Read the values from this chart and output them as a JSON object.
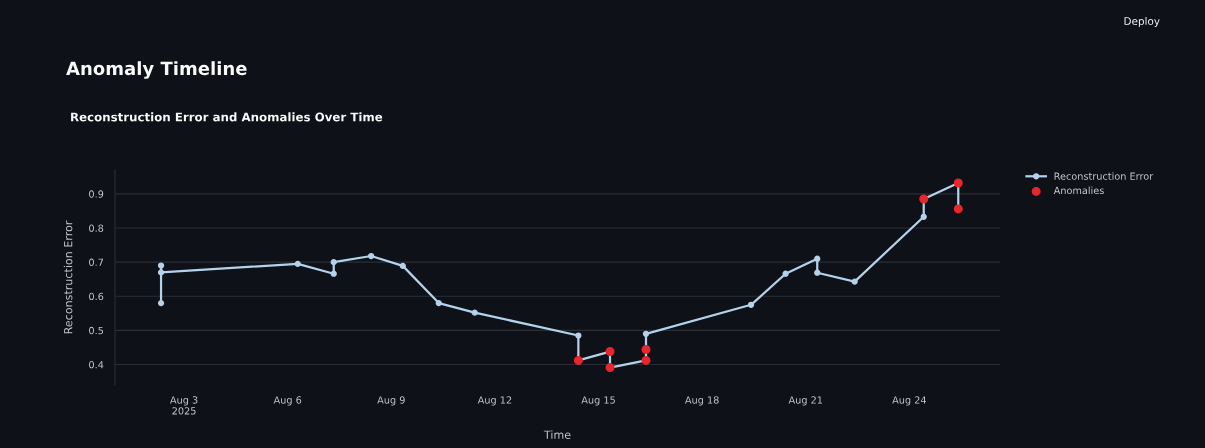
{
  "chart_data": {
    "type": "line",
    "title": "Anomaly Timeline",
    "subtitle": "Reconstruction Error and Anomalies Over Time",
    "xlabel": "Time",
    "ylabel": "Reconstruction Error",
    "annotations": [
      "Deploy"
    ],
    "series": [
      {
        "name": "Reconstruction Error",
        "color": "#b4d2ec",
        "marker": "circle",
        "x": [
          "2025-08-02T08:00",
          "2025-08-02T08:00",
          "2025-08-02T08:00",
          "2025-08-06T07:00",
          "2025-08-07T08:00",
          "2025-08-07T08:00",
          "2025-08-08T10:00",
          "2025-08-09T08:00",
          "2025-08-10T09:00",
          "2025-08-11T10:00",
          "2025-08-14T10:00",
          "2025-08-14T10:00",
          "2025-08-15T08:00",
          "2025-08-15T08:00",
          "2025-08-16T09:00",
          "2025-08-16T09:00",
          "2025-08-16T09:00",
          "2025-08-19T10:00",
          "2025-08-20T10:00",
          "2025-08-21T08:00",
          "2025-08-21T08:00",
          "2025-08-22T10:00",
          "2025-08-24T10:00",
          "2025-08-24T10:00",
          "2025-08-25T10:00",
          "2025-08-25T10:00"
        ],
        "values": [
          0.58,
          0.69,
          0.67,
          0.695,
          0.666,
          0.7,
          0.718,
          0.689,
          0.58,
          0.552,
          0.485,
          0.412,
          0.438,
          0.391,
          0.412,
          0.444,
          0.49,
          0.575,
          0.666,
          0.71,
          0.669,
          0.643,
          0.833,
          0.885,
          0.932,
          0.856
        ]
      },
      {
        "name": "Anomalies",
        "type": "scatter",
        "color": "#e8262b",
        "marker": "circle",
        "x": [
          "2025-08-14T10:00",
          "2025-08-15T08:00",
          "2025-08-15T08:00",
          "2025-08-16T09:00",
          "2025-08-16T09:00",
          "2025-08-24T10:00",
          "2025-08-25T10:00",
          "2025-08-25T10:00"
        ],
        "values": [
          0.412,
          0.438,
          0.391,
          0.412,
          0.444,
          0.885,
          0.932,
          0.856
        ]
      }
    ],
    "xlim": [
      "2025-08-01T00:00",
      "2025-08-26T15:00"
    ],
    "xticks": [
      {
        "value": "2025-08-03",
        "label": "Aug 3\n2025"
      },
      {
        "value": "2025-08-06",
        "label": "Aug 6"
      },
      {
        "value": "2025-08-09",
        "label": "Aug 9"
      },
      {
        "value": "2025-08-12",
        "label": "Aug 12"
      },
      {
        "value": "2025-08-15",
        "label": "Aug 15"
      },
      {
        "value": "2025-08-18",
        "label": "Aug 18"
      },
      {
        "value": "2025-08-21",
        "label": "Aug 21"
      },
      {
        "value": "2025-08-24",
        "label": "Aug 24"
      }
    ],
    "ylim": [
      0.34,
      0.97
    ],
    "yticks": [
      0.4,
      0.5,
      0.6,
      0.7,
      0.8,
      0.9
    ],
    "grid": "y",
    "legend": "top right"
  }
}
